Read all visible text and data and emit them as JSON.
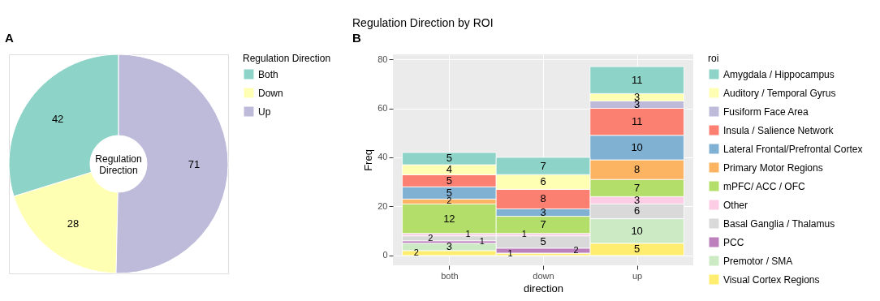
{
  "chart_data": [
    {
      "type": "donut",
      "categories": [
        "Both",
        "Down",
        "Up"
      ],
      "values": [
        42,
        28,
        71
      ],
      "colors": [
        "#8dd3c7",
        "#ffffb3",
        "#bebada"
      ],
      "legend_title": "Regulation Direction",
      "legend": "right",
      "data_labels": true,
      "annotations": [
        "A",
        "Regulation Direction"
      ]
    },
    {
      "type": "bar",
      "stacked": true,
      "title": "Regulation Direction by ROI",
      "xlabel": "direction",
      "ylabel": "Freq",
      "legend_title": "roi",
      "legend": "right",
      "grid": true,
      "annotations": [
        "B"
      ],
      "categories": [
        "both",
        "down",
        "up"
      ],
      "ylim": [
        -4,
        82
      ],
      "yticks": [
        0,
        20,
        40,
        60,
        80
      ],
      "series": [
        {
          "name": "Visual Cortex Regions",
          "color": "#ffed6f",
          "values": [
            2,
            1,
            5
          ],
          "value_labels": [
            "2",
            "1",
            "5"
          ]
        },
        {
          "name": "Premotor / SMA",
          "color": "#ccebc5",
          "values": [
            3,
            0,
            10
          ],
          "value_labels": [
            "3",
            null,
            "10"
          ]
        },
        {
          "name": "PCC",
          "color": "#bc80bd",
          "values": [
            1,
            2,
            0
          ],
          "value_labels": [
            "1",
            "2",
            null
          ]
        },
        {
          "name": "Basal Ganglia / Thalamus",
          "color": "#d9d9d9",
          "values": [
            2,
            5,
            6
          ],
          "value_labels": [
            "2",
            "5",
            "6"
          ]
        },
        {
          "name": "Other",
          "color": "#fccde5",
          "values": [
            1,
            1,
            3
          ],
          "value_labels": [
            "1",
            "1",
            "3"
          ]
        },
        {
          "name": "mPFC/ ACC / OFC",
          "color": "#b3de69",
          "values": [
            12,
            7,
            7
          ],
          "value_labels": [
            "12",
            "7",
            "7"
          ]
        },
        {
          "name": "Primary Motor Regions",
          "color": "#fdb462",
          "values": [
            2,
            0,
            8
          ],
          "value_labels": [
            "2",
            null,
            "8"
          ]
        },
        {
          "name": "Lateral Frontal/Prefrontal Cortex",
          "color": "#80b1d3",
          "values": [
            5,
            3,
            10
          ],
          "value_labels": [
            "5",
            "3",
            "10"
          ]
        },
        {
          "name": "Insula / Salience Network",
          "color": "#fb8072",
          "values": [
            5,
            8,
            11
          ],
          "value_labels": [
            "5",
            "8",
            "11"
          ]
        },
        {
          "name": "Fusiform Face Area",
          "color": "#bebada",
          "values": [
            0,
            0,
            3
          ],
          "value_labels": [
            null,
            null,
            "3"
          ]
        },
        {
          "name": "Auditory / Temporal Gyrus",
          "color": "#ffffb3",
          "values": [
            4,
            6,
            3
          ],
          "value_labels": [
            "4",
            "6",
            "3"
          ]
        },
        {
          "name": "Amygdala / Hippocampus",
          "color": "#8dd3c7",
          "values": [
            5,
            7,
            11
          ],
          "value_labels": [
            "5",
            "7",
            "11"
          ]
        }
      ]
    }
  ]
}
